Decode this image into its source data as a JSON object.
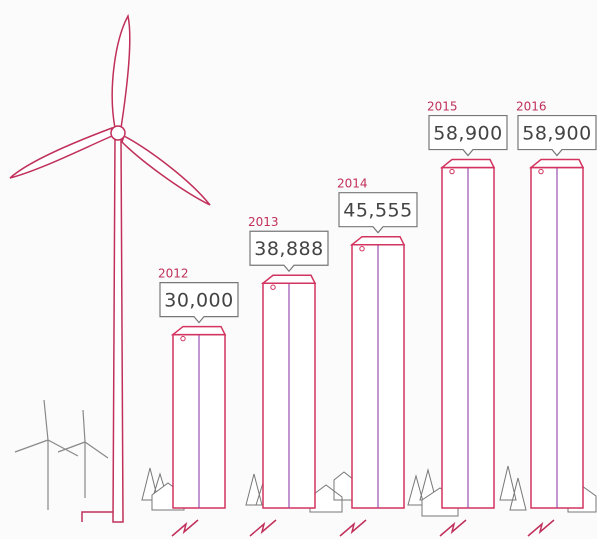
{
  "chart_data": {
    "type": "bar",
    "categories": [
      "2012",
      "2013",
      "2014",
      "2015",
      "2016"
    ],
    "values": [
      30000,
      38888,
      45555,
      58900,
      58900
    ],
    "value_labels": [
      "30,000",
      "38,888",
      "45,555",
      "58,900",
      "58,900"
    ],
    "color": "#d2335f"
  }
}
